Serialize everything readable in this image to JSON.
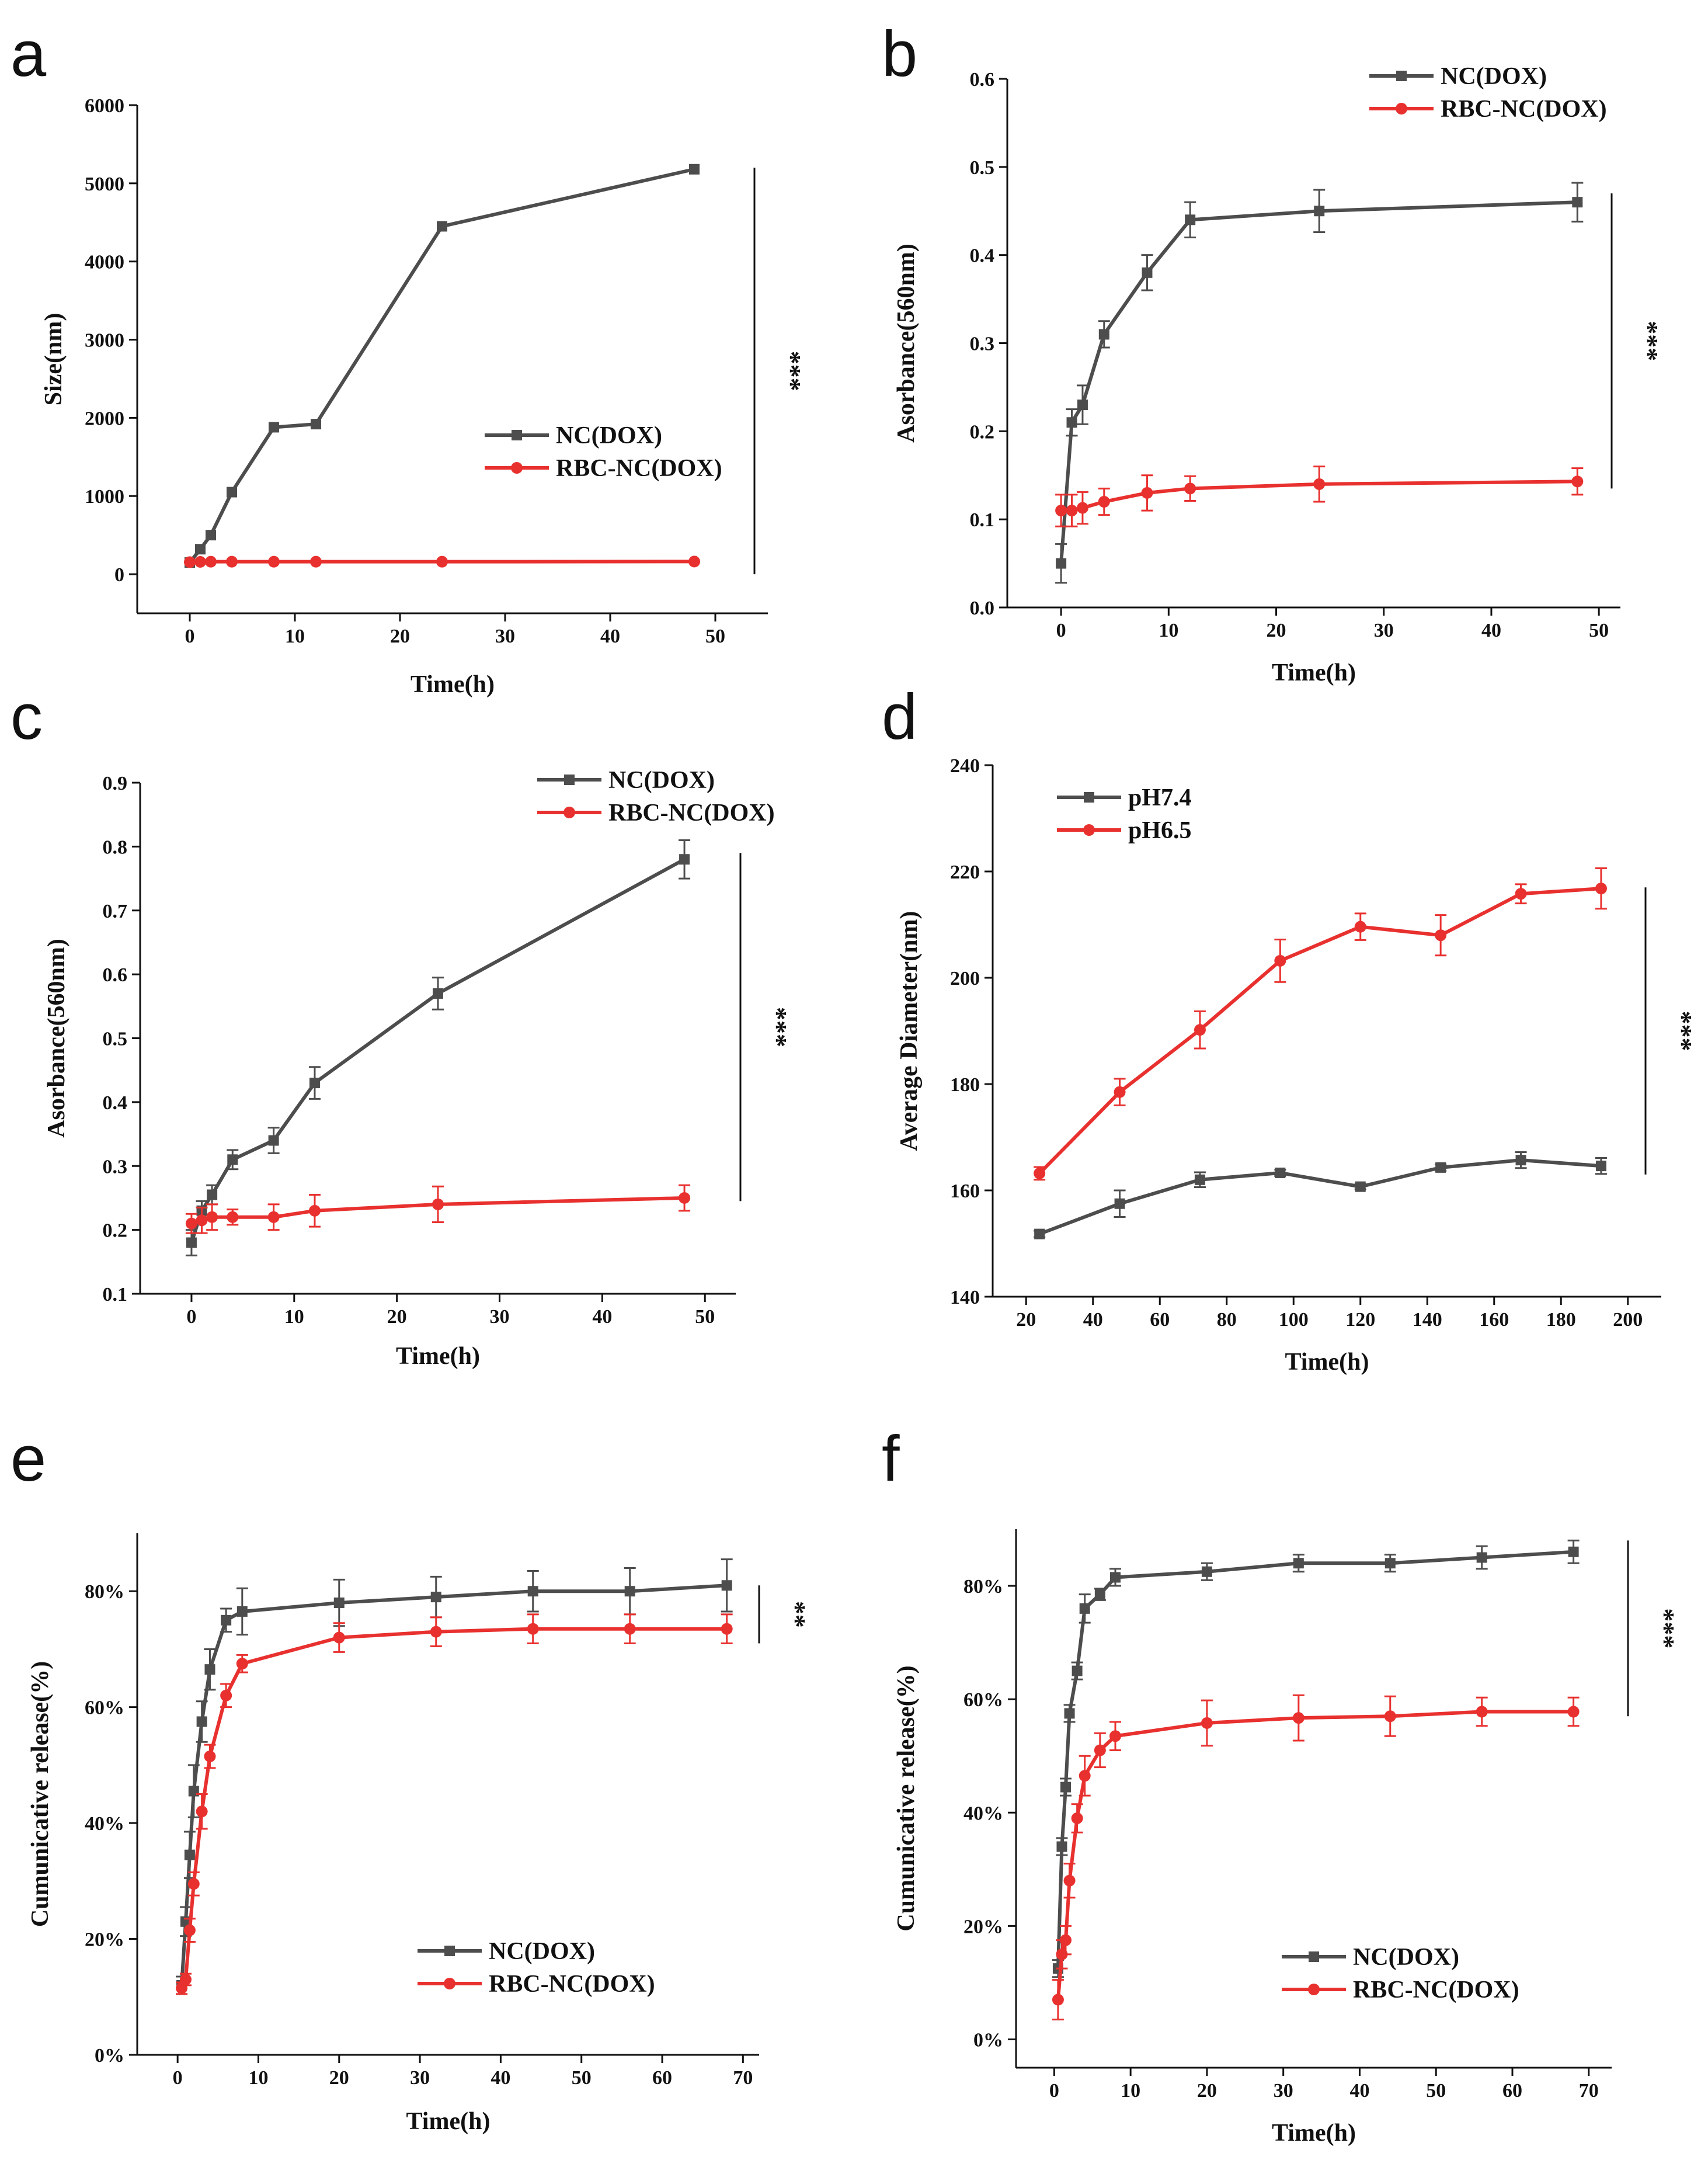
{
  "chart_data": [
    {
      "panel": "a",
      "type": "line",
      "xlabel": "Time(h)",
      "ylabel": "Size(nm)",
      "xlim": [
        -5,
        55
      ],
      "ylim": [
        -500,
        6000
      ],
      "xticks": [
        0,
        10,
        20,
        30,
        40,
        50
      ],
      "yticks": [
        0,
        1000,
        2000,
        3000,
        4000,
        5000,
        6000
      ],
      "ytick_labels": [
        "0",
        "1000",
        "2000",
        "3000",
        "4000",
        "5000",
        "6000"
      ],
      "legend_position": "center-right",
      "significance": "***",
      "significance_range": [
        0,
        5200
      ],
      "series": [
        {
          "name": "NC(DOX)",
          "color": "#4d4d4d",
          "marker": "square",
          "x": [
            0,
            1,
            2,
            4,
            8,
            12,
            24,
            48
          ],
          "y": [
            150,
            320,
            500,
            1050,
            1880,
            1920,
            4450,
            5180
          ],
          "err": [
            0,
            0,
            0,
            0,
            0,
            0,
            0,
            0
          ]
        },
        {
          "name": "RBC-NC(DOX)",
          "color": "#e8312f",
          "marker": "circle",
          "x": [
            0,
            1,
            2,
            4,
            8,
            12,
            24,
            48
          ],
          "y": [
            155,
            158,
            160,
            160,
            160,
            160,
            160,
            162
          ],
          "err": [
            0,
            0,
            0,
            0,
            0,
            0,
            0,
            0
          ]
        }
      ]
    },
    {
      "panel": "b",
      "type": "line",
      "xlabel": "Time(h)",
      "ylabel": "Asorbance(560nm)",
      "xlim": [
        -5,
        52
      ],
      "ylim": [
        0,
        0.6
      ],
      "xticks": [
        0,
        10,
        20,
        30,
        40,
        50
      ],
      "yticks": [
        0,
        0.1,
        0.2,
        0.3,
        0.4,
        0.5,
        0.6
      ],
      "ytick_labels": [
        "0.0",
        "0.1",
        "0.2",
        "0.3",
        "0.4",
        "0.5",
        "0.6"
      ],
      "legend_position": "top-right",
      "significance": "***",
      "significance_range": [
        0.135,
        0.47
      ],
      "series": [
        {
          "name": "NC(DOX)",
          "color": "#4d4d4d",
          "marker": "square",
          "x": [
            0,
            1,
            2,
            4,
            8,
            12,
            24,
            48
          ],
          "y": [
            0.05,
            0.21,
            0.23,
            0.31,
            0.38,
            0.44,
            0.45,
            0.46
          ],
          "err": [
            0.022,
            0.015,
            0.022,
            0.015,
            0.02,
            0.02,
            0.024,
            0.022
          ]
        },
        {
          "name": "RBC-NC(DOX)",
          "color": "#e8312f",
          "marker": "circle",
          "x": [
            0,
            1,
            2,
            4,
            8,
            12,
            24,
            48
          ],
          "y": [
            0.11,
            0.11,
            0.113,
            0.12,
            0.13,
            0.135,
            0.14,
            0.143
          ],
          "err": [
            0.018,
            0.018,
            0.018,
            0.015,
            0.02,
            0.014,
            0.02,
            0.015
          ]
        }
      ]
    },
    {
      "panel": "c",
      "type": "line",
      "xlabel": "Time(h)",
      "ylabel": "Asorbance(560nm)",
      "xlim": [
        -5,
        53
      ],
      "ylim": [
        0.1,
        0.9
      ],
      "xticks": [
        0,
        10,
        20,
        30,
        40,
        50
      ],
      "yticks": [
        0.1,
        0.2,
        0.3,
        0.4,
        0.5,
        0.6,
        0.7,
        0.8,
        0.9
      ],
      "ytick_labels": [
        "0.1",
        "0.2",
        "0.3",
        "0.4",
        "0.5",
        "0.6",
        "0.7",
        "0.8",
        "0.9"
      ],
      "legend_position": "top-right",
      "significance": "***",
      "significance_range": [
        0.245,
        0.79
      ],
      "series": [
        {
          "name": "NC(DOX)",
          "color": "#4d4d4d",
          "marker": "square",
          "x": [
            0,
            1,
            2,
            4,
            8,
            12,
            24,
            48
          ],
          "y": [
            0.18,
            0.23,
            0.255,
            0.31,
            0.34,
            0.43,
            0.57,
            0.78
          ],
          "err": [
            0.02,
            0.015,
            0.015,
            0.015,
            0.02,
            0.025,
            0.025,
            0.03
          ]
        },
        {
          "name": "RBC-NC(DOX)",
          "color": "#e8312f",
          "marker": "circle",
          "x": [
            0,
            1,
            2,
            4,
            8,
            12,
            24,
            48
          ],
          "y": [
            0.21,
            0.215,
            0.22,
            0.22,
            0.22,
            0.23,
            0.24,
            0.25
          ],
          "err": [
            0.015,
            0.02,
            0.02,
            0.012,
            0.02,
            0.025,
            0.028,
            0.02
          ]
        }
      ]
    },
    {
      "panel": "d",
      "type": "line",
      "xlabel": "Time(h)",
      "ylabel": "Average Diameter(nm)",
      "xlim": [
        10,
        210
      ],
      "ylim": [
        140,
        240
      ],
      "xticks": [
        20,
        40,
        60,
        80,
        100,
        120,
        140,
        160,
        180,
        200
      ],
      "yticks": [
        140,
        160,
        180,
        200,
        220,
        240
      ],
      "ytick_labels": [
        "140",
        "160",
        "180",
        "200",
        "220",
        "240"
      ],
      "legend_position": "top-left",
      "significance": "***",
      "significance_range": [
        163,
        217
      ],
      "series": [
        {
          "name": "pH7.4",
          "color": "#4d4d4d",
          "marker": "square",
          "x": [
            24,
            48,
            72,
            96,
            120,
            144,
            168,
            192
          ],
          "y": [
            151.8,
            157.5,
            162,
            163.3,
            160.7,
            164.3,
            165.7,
            164.6
          ],
          "err": [
            0.6,
            2.5,
            1.4,
            0.6,
            0.5,
            0.6,
            1.5,
            1.5
          ]
        },
        {
          "name": "pH6.5",
          "color": "#e8312f",
          "marker": "circle",
          "x": [
            24,
            48,
            72,
            96,
            120,
            144,
            168,
            192
          ],
          "y": [
            163.2,
            178.5,
            190.2,
            203.2,
            209.6,
            208,
            215.8,
            216.8
          ],
          "err": [
            1.2,
            2.5,
            3.5,
            4,
            2.5,
            3.8,
            1.8,
            3.8
          ]
        }
      ]
    },
    {
      "panel": "e",
      "type": "line",
      "xlabel": "Time(h)",
      "ylabel": "Cumunicative release(%)",
      "xlim": [
        -5,
        72
      ],
      "ylim": [
        0,
        90
      ],
      "xticks": [
        0,
        10,
        20,
        30,
        40,
        50,
        60,
        70
      ],
      "yticks": [
        0,
        20,
        40,
        60,
        80
      ],
      "ytick_labels": [
        "0%",
        "20%",
        "40%",
        "60%",
        "80%"
      ],
      "legend_position": "bottom-right",
      "significance": "**",
      "significance_range": [
        71,
        81
      ],
      "series": [
        {
          "name": "NC(DOX)",
          "color": "#4d4d4d",
          "marker": "square",
          "x": [
            0.5,
            1,
            1.5,
            2,
            3,
            4,
            6,
            8,
            20,
            32,
            44,
            56,
            68
          ],
          "y": [
            12,
            23,
            34.5,
            45.5,
            57.5,
            66.5,
            75,
            76.5,
            78,
            79,
            80,
            80,
            81
          ],
          "err": [
            1.5,
            2.5,
            4,
            4.5,
            3.5,
            3.5,
            2,
            4,
            4,
            3.5,
            3.5,
            4,
            4.5
          ]
        },
        {
          "name": "RBC-NC(DOX)",
          "color": "#e8312f",
          "marker": "circle",
          "x": [
            0.5,
            1,
            1.5,
            2,
            3,
            4,
            6,
            8,
            20,
            32,
            44,
            56,
            68
          ],
          "y": [
            11.5,
            13,
            21.5,
            29.5,
            42,
            51.5,
            62,
            67.5,
            72,
            73,
            73.5,
            73.5,
            73.5
          ],
          "err": [
            1,
            1,
            2,
            2,
            3,
            2,
            2,
            1.5,
            2.5,
            2.5,
            2.5,
            2.5,
            2.5
          ]
        }
      ]
    },
    {
      "panel": "f",
      "type": "line",
      "xlabel": "Time(h)",
      "ylabel": "Cumunicative release(%)",
      "xlim": [
        -5,
        73
      ],
      "ylim": [
        -5,
        90
      ],
      "xticks": [
        0,
        10,
        20,
        30,
        40,
        50,
        60,
        70
      ],
      "yticks": [
        0,
        20,
        40,
        60,
        80
      ],
      "ytick_labels": [
        "0%",
        "20%",
        "40%",
        "60%",
        "80%"
      ],
      "legend_position": "bottom-right",
      "significance": "***",
      "significance_range": [
        57,
        88
      ],
      "series": [
        {
          "name": "NC(DOX)",
          "color": "#4d4d4d",
          "marker": "square",
          "x": [
            0.5,
            1,
            1.5,
            2,
            3,
            4,
            6,
            8,
            20,
            32,
            44,
            56,
            68
          ],
          "y": [
            12.5,
            34,
            44.5,
            57.5,
            65,
            76,
            78.5,
            81.5,
            82.5,
            84,
            84,
            85,
            86
          ],
          "err": [
            1.5,
            1.5,
            1.5,
            1.5,
            1.5,
            2.5,
            1,
            1.5,
            1.5,
            1.5,
            1.5,
            2,
            2
          ]
        },
        {
          "name": "RBC-NC(DOX)",
          "color": "#e8312f",
          "marker": "circle",
          "x": [
            0.5,
            1,
            1.5,
            2,
            3,
            4,
            6,
            8,
            20,
            32,
            44,
            56,
            68
          ],
          "y": [
            7,
            15,
            17.5,
            28,
            39,
            46.5,
            51,
            53.5,
            55.8,
            56.7,
            57,
            57.8,
            57.8
          ],
          "err": [
            3.5,
            2.5,
            2.5,
            3,
            2.5,
            3.5,
            3,
            2.5,
            4,
            4,
            3.5,
            2.5,
            2.5
          ]
        }
      ]
    }
  ],
  "panel_labels": [
    "a",
    "b",
    "c",
    "d",
    "e",
    "f"
  ]
}
